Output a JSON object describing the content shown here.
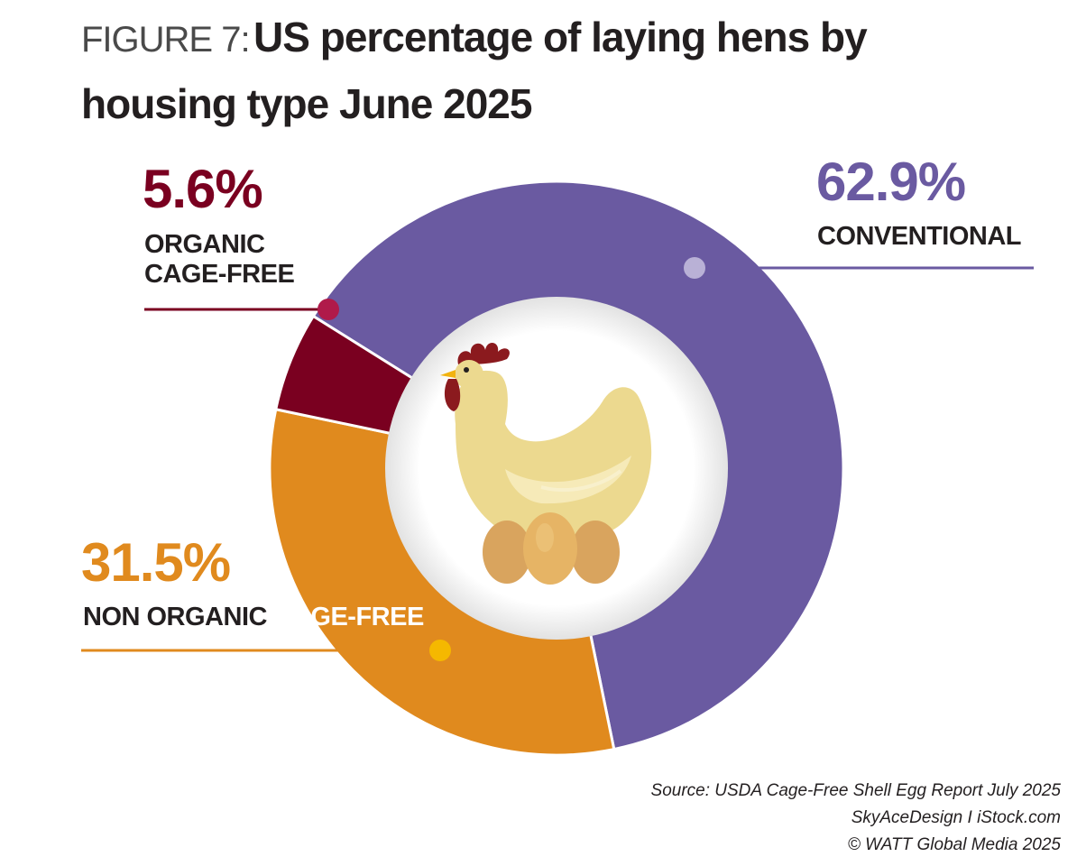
{
  "header": {
    "figure_prefix": "FIGURE 7:",
    "title_line1": "US percentage of laying hens by",
    "title_line2": "housing type June 2025"
  },
  "chart_data": {
    "type": "pie",
    "title": "US percentage of laying hens by housing type June 2025",
    "donut": true,
    "slices": [
      {
        "label": "CONVENTIONAL",
        "value": 62.9,
        "value_label": "62.9%",
        "color": "#6a5aa1"
      },
      {
        "label": "NON ORGANIC CAGE-FREE",
        "value": 31.5,
        "value_label": "31.5%",
        "color": "#e08a1e"
      },
      {
        "label": "ORGANIC CAGE-FREE",
        "value": 5.6,
        "value_label": "5.6%",
        "color": "#7a0020"
      }
    ]
  },
  "labels": {
    "organic_line1": "ORGANIC",
    "organic_line2": "CAGE-FREE",
    "non_organic_part1": "NON ORGANIC",
    "non_organic_part2": "CAGE-FREE"
  },
  "center_icon": "hen-on-eggs-icon",
  "source": {
    "line1": "Source: USDA Cage-Free Shell Egg Report July 2025",
    "line2": "SkyAceDesign I iStock.com",
    "line3": "© WATT Global Media 2025"
  },
  "colors": {
    "conventional": "#6a5aa1",
    "non_organic": "#e08a1e",
    "organic": "#7a0020",
    "leader_organic": "#b01a4a",
    "leader_conventional": "#b9b1d6"
  }
}
